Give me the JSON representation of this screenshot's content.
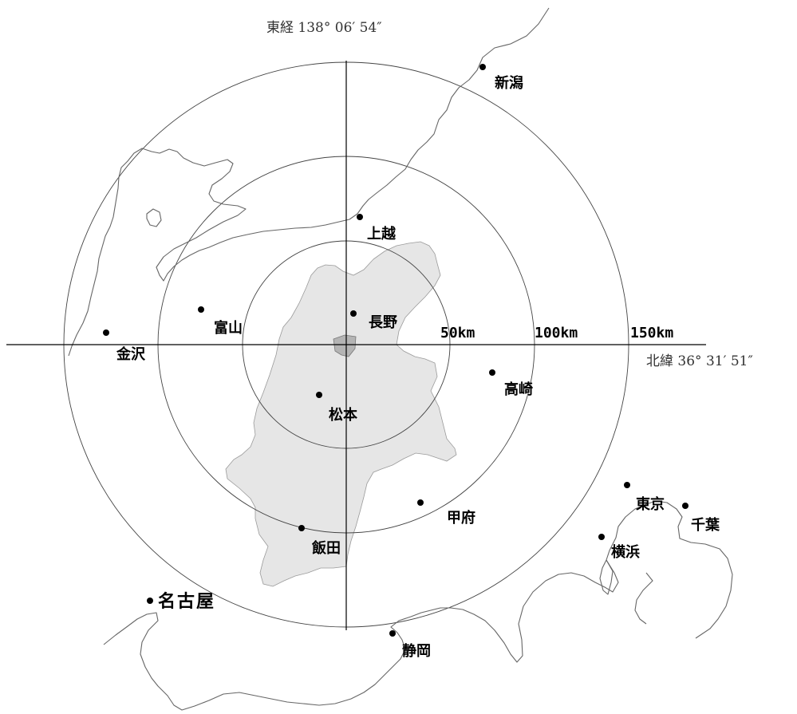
{
  "map": {
    "longitude_label": "東経 138° 06′ 54″",
    "latitude_label": "北緯 36° 31′ 51″",
    "region_fill": "#e6e6e6",
    "center_fill": "#b4b4b4",
    "rings": [
      {
        "id": "50",
        "label": "50km"
      },
      {
        "id": "100",
        "label": "100km"
      },
      {
        "id": "150",
        "label": "150km"
      }
    ],
    "cities": [
      {
        "id": "niigata",
        "name": "新潟"
      },
      {
        "id": "joetsu",
        "name": "上越"
      },
      {
        "id": "nagano",
        "name": "長野"
      },
      {
        "id": "toyama",
        "name": "富山"
      },
      {
        "id": "kanazawa",
        "name": "金沢"
      },
      {
        "id": "takasaki",
        "name": "高崎"
      },
      {
        "id": "matsumoto",
        "name": "松本"
      },
      {
        "id": "kofu",
        "name": "甲府"
      },
      {
        "id": "tokyo",
        "name": "東京"
      },
      {
        "id": "chiba",
        "name": "千葉"
      },
      {
        "id": "yokohama",
        "name": "横浜"
      },
      {
        "id": "iida",
        "name": "飯田"
      },
      {
        "id": "nagoya",
        "name": "名古屋"
      },
      {
        "id": "shizuoka",
        "name": "静岡"
      }
    ]
  }
}
